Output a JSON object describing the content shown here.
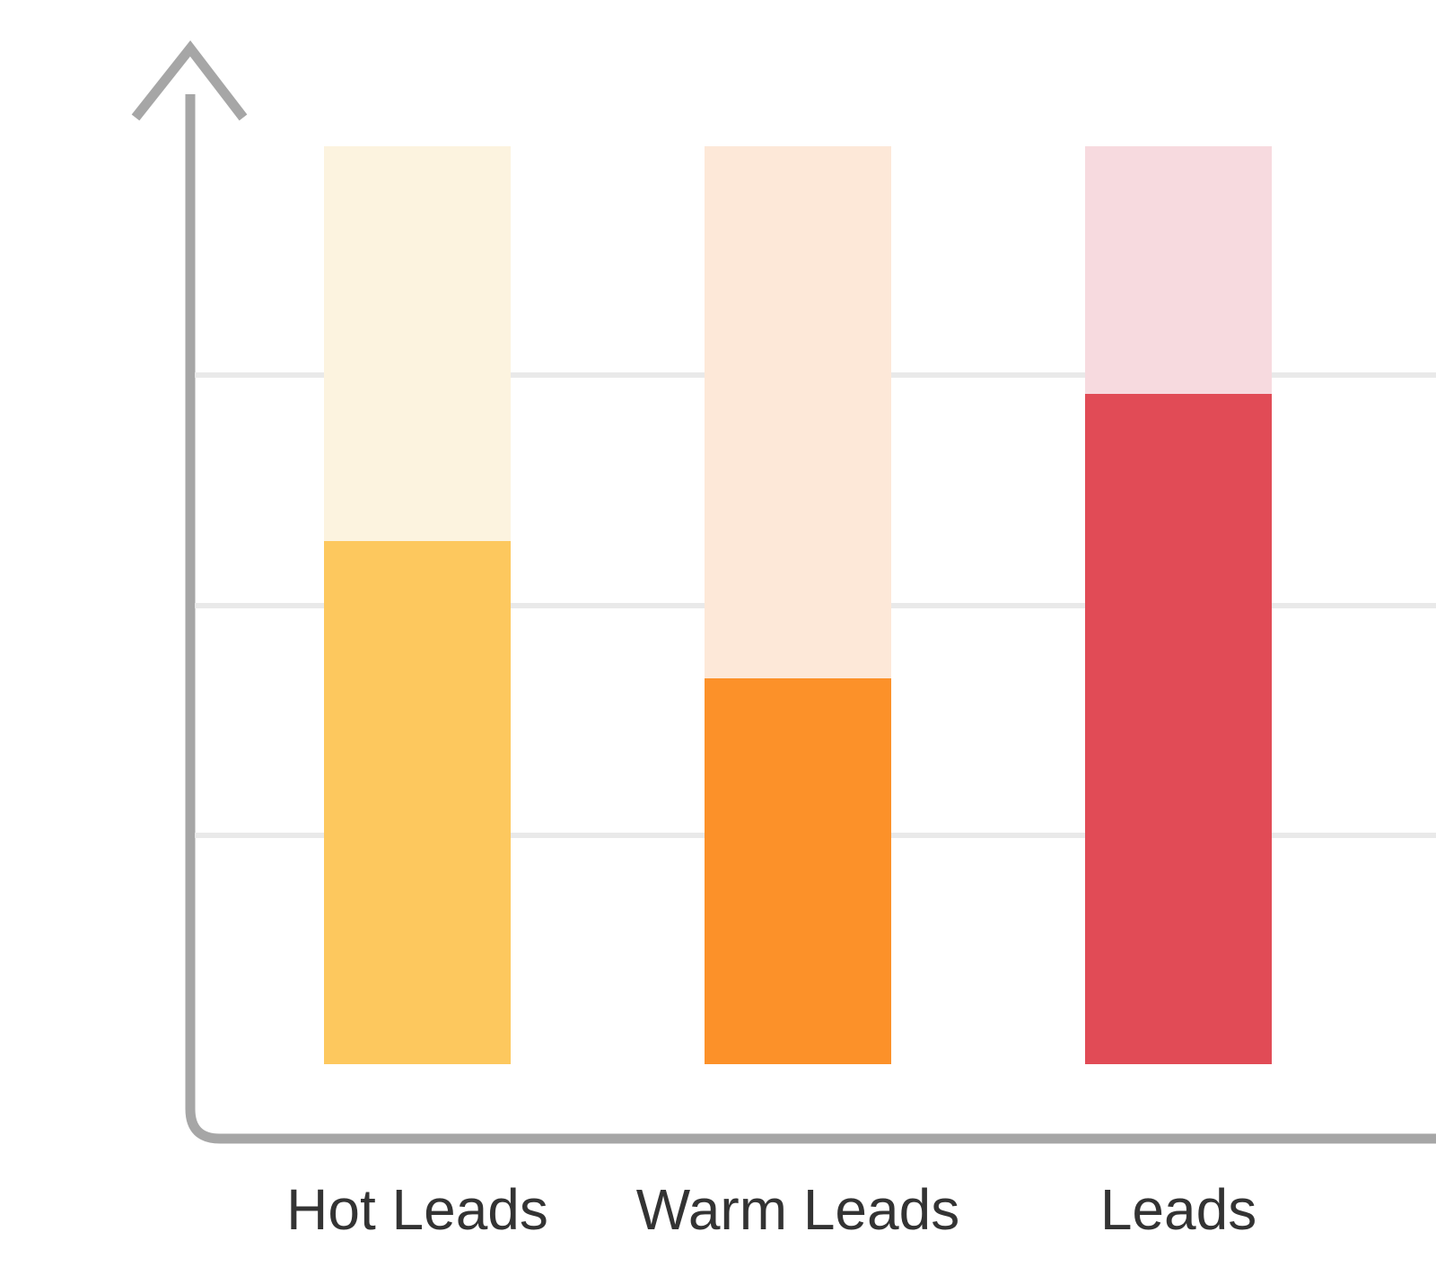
{
  "chart_data": {
    "type": "bar",
    "subtype": "vertical progress columns (filled value over pale full-height track)",
    "title": "",
    "categories": [
      "Hot Leads",
      "Warm Leads",
      "Leads"
    ],
    "series": [
      {
        "name": "filled_value",
        "values": [
          57,
          42,
          73
        ]
      },
      {
        "name": "track_remainder",
        "values": [
          43,
          58,
          27
        ]
      }
    ],
    "ylim": [
      0,
      100
    ],
    "gridlines_y_pct": [
      25,
      50,
      75
    ],
    "y_tick_labels": "none",
    "legend_position": "none",
    "grid": "horizontal lines only"
  },
  "bars": [
    {
      "label": "Hot Leads",
      "value_pct": 57,
      "fill_color": "#FDC85E",
      "track_color": "#FCF3DF"
    },
    {
      "label": "Warm Leads",
      "value_pct": 42,
      "fill_color": "#FC9129",
      "track_color": "#FDE8D8"
    },
    {
      "label": "Leads",
      "value_pct": 73,
      "fill_color": "#E14B56",
      "track_color": "#F7DADF"
    }
  ],
  "axis": {
    "line_color": "#A6A6A6",
    "gridline_color": "#E9E9E9",
    "label_color": "#333333"
  }
}
